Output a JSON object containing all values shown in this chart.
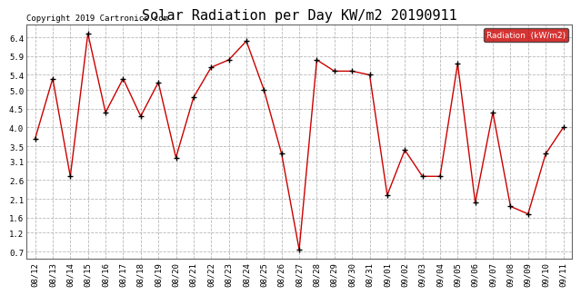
{
  "title": "Solar Radiation per Day KW/m2 20190911",
  "copyright": "Copyright 2019 Cartronics.com",
  "legend_label": "Radiation  (kW/m2)",
  "dates": [
    "08/12",
    "08/13",
    "08/14",
    "08/15",
    "08/16",
    "08/17",
    "08/18",
    "08/19",
    "08/20",
    "08/21",
    "08/22",
    "08/23",
    "08/24",
    "08/25",
    "08/26",
    "08/27",
    "08/28",
    "08/29",
    "08/30",
    "08/31",
    "09/01",
    "09/02",
    "09/03",
    "09/04",
    "09/05",
    "09/06",
    "09/07",
    "09/08",
    "09/09",
    "09/10",
    "09/11"
  ],
  "values": [
    3.7,
    5.3,
    2.7,
    6.5,
    4.4,
    5.3,
    4.3,
    5.2,
    3.2,
    4.8,
    5.6,
    5.8,
    6.3,
    5.0,
    3.3,
    0.75,
    5.8,
    5.5,
    5.5,
    5.4,
    2.2,
    3.4,
    2.7,
    2.7,
    5.7,
    2.0,
    4.4,
    1.9,
    1.7,
    3.3,
    4.0
  ],
  "ylim": [
    0.5,
    6.75
  ],
  "yticks": [
    0.7,
    1.2,
    1.6,
    2.1,
    2.6,
    3.1,
    3.5,
    4.0,
    4.5,
    5.0,
    5.4,
    5.9,
    6.4
  ],
  "line_color": "#cc0000",
  "marker_color": "#000000",
  "bg_color": "#ffffff",
  "grid_color": "#b0b0b0",
  "title_fontsize": 11,
  "tick_fontsize": 6.5,
  "legend_bg": "#cc0000",
  "legend_text_color": "#ffffff",
  "copyright_fontsize": 6.5
}
